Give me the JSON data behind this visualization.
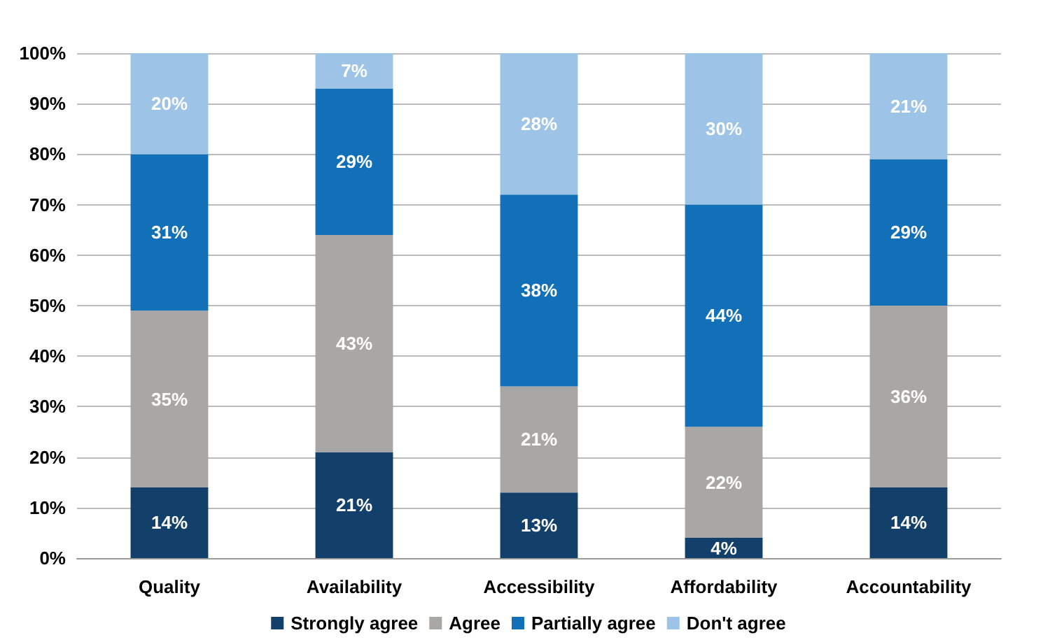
{
  "chart_data": {
    "type": "bar",
    "stacked": true,
    "categories": [
      "Quality",
      "Availability",
      "Accessibility",
      "Affordability",
      "Accountability"
    ],
    "series": [
      {
        "name": "Strongly agree",
        "color": "#133f6b",
        "values": [
          14,
          21,
          13,
          4,
          14
        ],
        "value_labels": [
          "14%",
          "21%",
          "13%",
          "4%",
          "14%"
        ]
      },
      {
        "name": "Agree",
        "color": "#a9a6a6",
        "values": [
          35,
          43,
          21,
          22,
          36
        ],
        "value_labels": [
          "35%",
          "43%",
          "21%",
          "22%",
          "36%"
        ]
      },
      {
        "name": "Partially agree",
        "color": "#1170b8",
        "values": [
          31,
          29,
          38,
          44,
          29
        ],
        "value_labels": [
          "31%",
          "29%",
          "38%",
          "44%",
          "29%"
        ]
      },
      {
        "name": "Don't agree",
        "color": "#9dc3e6",
        "values": [
          20,
          7,
          28,
          30,
          21
        ],
        "value_labels": [
          "20%",
          "7%",
          "28%",
          "30%",
          "21%"
        ]
      }
    ],
    "ylim": [
      0,
      100
    ],
    "yticks": [
      {
        "value": 0,
        "label": "0%"
      },
      {
        "value": 10,
        "label": "10%"
      },
      {
        "value": 20,
        "label": "20%"
      },
      {
        "value": 30,
        "label": "30%"
      },
      {
        "value": 40,
        "label": "40%"
      },
      {
        "value": 50,
        "label": "50%"
      },
      {
        "value": 60,
        "label": "60%"
      },
      {
        "value": 70,
        "label": "70%"
      },
      {
        "value": 80,
        "label": "80%"
      },
      {
        "value": 90,
        "label": "90%"
      },
      {
        "value": 100,
        "label": "100%"
      }
    ],
    "grid": "y",
    "legend": "bottom"
  }
}
